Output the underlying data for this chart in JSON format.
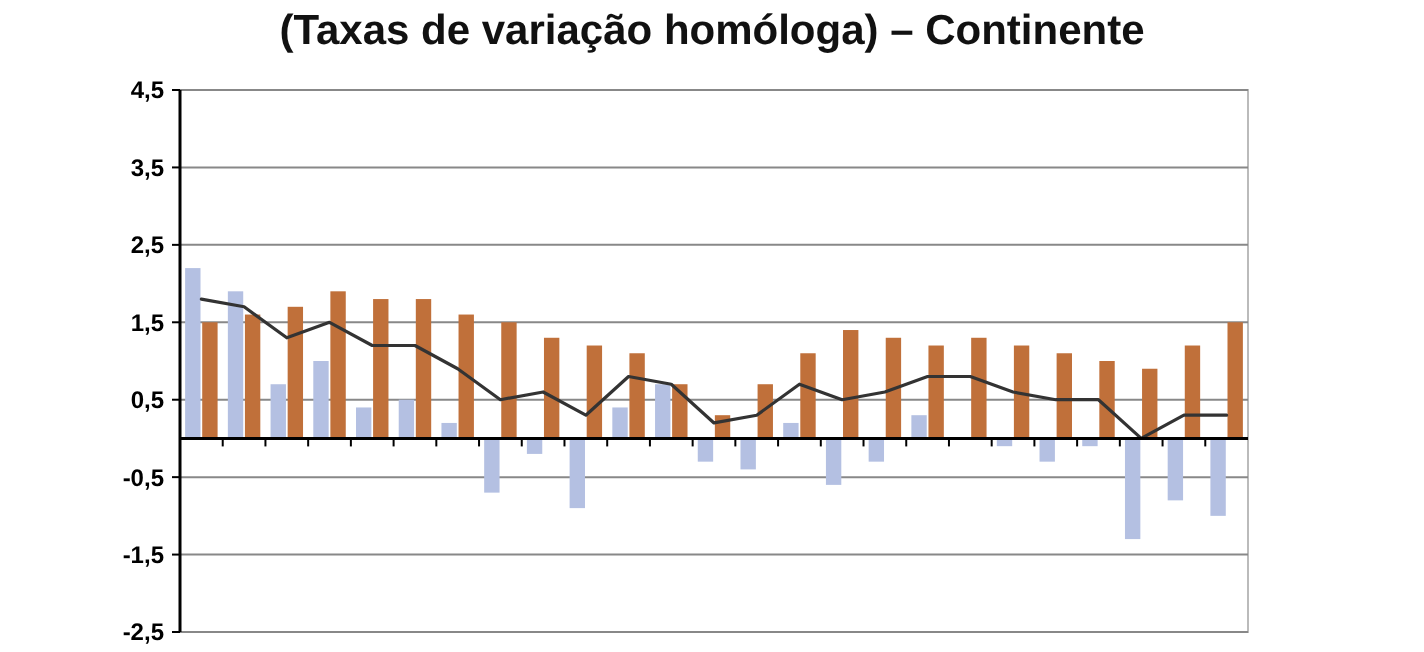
{
  "chart_data": {
    "type": "bar",
    "title": "(Taxas de variação homóloga) – Continente",
    "categories": [
      null,
      null,
      null,
      null,
      null,
      null,
      null,
      null,
      null,
      null,
      null,
      null,
      null,
      null,
      null,
      null,
      null,
      null,
      null,
      null,
      null,
      null,
      null,
      null,
      null
    ],
    "series": [
      {
        "color": "#b4c0e2",
        "values": [
          2.2,
          1.9,
          0.7,
          1.0,
          0.4,
          0.5,
          0.2,
          -0.7,
          -0.2,
          -0.9,
          0.4,
          0.7,
          -0.3,
          -0.4,
          0.2,
          -0.6,
          -0.3,
          0.3,
          0,
          -0.1,
          -0.3,
          -0.1,
          -1.3,
          -0.8,
          -1.0
        ]
      },
      {
        "color": "#c0703a",
        "values": [
          1.5,
          1.6,
          1.7,
          1.9,
          1.8,
          1.8,
          1.6,
          1.5,
          1.3,
          1.2,
          1.1,
          0.7,
          0.3,
          0.7,
          1.1,
          1.4,
          1.3,
          1.2,
          1.3,
          1.2,
          1.1,
          1.0,
          0.9,
          1.2,
          1.5
        ]
      },
      {
        "type": "line",
        "color": "#333333",
        "values": [
          1.8,
          1.7,
          1.3,
          1.5,
          1.2,
          1.2,
          0.9,
          0.5,
          0.6,
          0.3,
          0.8,
          0.7,
          0.2,
          0.3,
          0.7,
          0.5,
          0.6,
          0.8,
          0.8,
          0.6,
          0.5,
          0.5,
          0,
          0.3,
          0.3
        ]
      }
    ],
    "ylim": [
      -2.5,
      4.5
    ],
    "yticks": [
      {
        "value": -2.5,
        "label": "-2,5"
      },
      {
        "value": -1.5,
        "label": "-1,5"
      },
      {
        "value": -0.5,
        "label": "-0,5"
      },
      {
        "value": 0.5,
        "label": "0,5"
      },
      {
        "value": 1.5,
        "label": "1,5"
      },
      {
        "value": 2.5,
        "label": "2,5"
      },
      {
        "value": 3.5,
        "label": "3,5"
      },
      {
        "value": 4.5,
        "label": "4,5"
      }
    ],
    "grid": "y",
    "tick_labels": "y"
  }
}
